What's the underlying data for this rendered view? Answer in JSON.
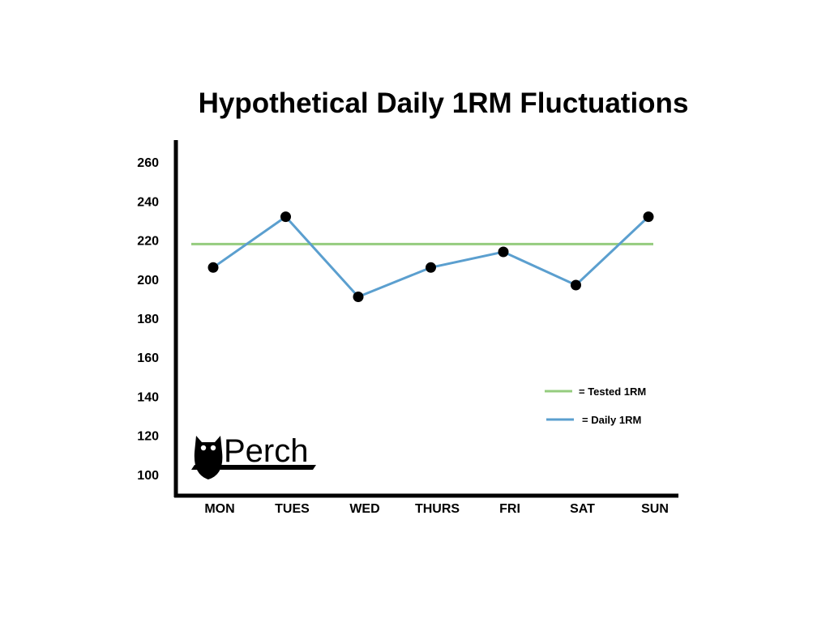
{
  "chart_data": {
    "type": "line",
    "title": "Hypothetical Daily 1RM Fluctuations",
    "xlabel": "",
    "ylabel": "",
    "categories": [
      "MON",
      "TUES",
      "WED",
      "THURS",
      "FRI",
      "SAT",
      "SUN"
    ],
    "y_ticks": [
      "260",
      "240",
      "220",
      "200",
      "180",
      "160",
      "140",
      "120",
      "100"
    ],
    "ylim": [
      90,
      270
    ],
    "series": [
      {
        "name": "= Daily 1RM",
        "values": [
          206,
          232,
          191,
          206,
          214,
          197,
          232
        ],
        "color": "#5b9fcf",
        "markers": true
      },
      {
        "name": "= Tested 1RM",
        "constant": 218,
        "color": "#95cc7e",
        "markers": false
      }
    ],
    "grid": false,
    "legend": "bottom-right"
  },
  "logo": {
    "text": "Perch",
    "icon": "owl-icon"
  }
}
